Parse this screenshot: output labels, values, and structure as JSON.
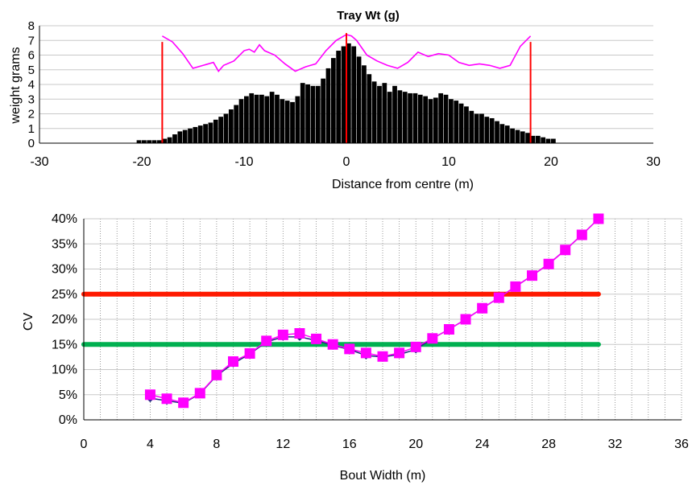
{
  "chart_data": [
    {
      "type": "bar",
      "title": "Tray Wt (g)",
      "xlabel": "Distance from centre (m)",
      "ylabel": "weight grams",
      "xlim": [
        -30,
        30
      ],
      "ylim": [
        0,
        8
      ],
      "xticks": [
        -30,
        -20,
        -10,
        0,
        10,
        20,
        30
      ],
      "yticks": [
        0,
        1,
        2,
        3,
        4,
        5,
        6,
        7,
        8
      ],
      "grid": true,
      "bin_width": 0.5,
      "histogram": {
        "x": [
          -20.5,
          -20,
          -19.5,
          -19,
          -18.5,
          -18,
          -17.5,
          -17,
          -16.5,
          -16,
          -15.5,
          -15,
          -14.5,
          -14,
          -13.5,
          -13,
          -12.5,
          -12,
          -11.5,
          -11,
          -10.5,
          -10,
          -9.5,
          -9,
          -8.5,
          -8,
          -7.5,
          -7,
          -6.5,
          -6,
          -5.5,
          -5,
          -4.5,
          -4,
          -3.5,
          -3,
          -2.5,
          -2,
          -1.5,
          -1,
          -0.5,
          0,
          0.5,
          1,
          1.5,
          2,
          2.5,
          3,
          3.5,
          4,
          4.5,
          5,
          5.5,
          6,
          6.5,
          7,
          7.5,
          8,
          8.5,
          9,
          9.5,
          10,
          10.5,
          11,
          11.5,
          12,
          12.5,
          13,
          13.5,
          14,
          14.5,
          15,
          15.5,
          16,
          16.5,
          17,
          17.5,
          18,
          18.5,
          19,
          19.5,
          20
        ],
        "values": [
          0.2,
          0.2,
          0.2,
          0.2,
          0.2,
          0.3,
          0.4,
          0.6,
          0.8,
          0.9,
          1.0,
          1.1,
          1.2,
          1.3,
          1.4,
          1.6,
          1.8,
          2.0,
          2.3,
          2.6,
          3.0,
          3.2,
          3.4,
          3.3,
          3.3,
          3.2,
          3.5,
          3.3,
          3.0,
          2.9,
          2.8,
          3.2,
          4.1,
          4.0,
          3.9,
          3.9,
          4.4,
          5.1,
          5.8,
          6.3,
          6.6,
          6.8,
          6.6,
          5.9,
          5.3,
          4.7,
          4.2,
          3.9,
          4.1,
          3.5,
          3.9,
          3.6,
          3.5,
          3.4,
          3.4,
          3.3,
          3.2,
          3.0,
          3.1,
          3.4,
          3.3,
          3.0,
          2.9,
          2.7,
          2.5,
          2.2,
          2.0,
          2.0,
          1.8,
          1.7,
          1.5,
          1.3,
          1.2,
          1.0,
          0.9,
          0.8,
          0.7,
          0.5,
          0.5,
          0.4,
          0.3,
          0.3
        ]
      },
      "cv_line": {
        "color": "#ff00ff",
        "x": [
          -18,
          -17,
          -16,
          -15,
          -14,
          -13,
          -12.5,
          -12,
          -11,
          -10,
          -9.5,
          -9,
          -8.5,
          -8,
          -7,
          -6,
          -5,
          -4,
          -3,
          -2,
          -1,
          0,
          0.5,
          1,
          2,
          3,
          4,
          5,
          6,
          7,
          8,
          9,
          10,
          11,
          12,
          13,
          14,
          15,
          16,
          17,
          18
        ],
        "values": [
          7.3,
          6.9,
          6.1,
          5.1,
          5.3,
          5.5,
          4.9,
          5.3,
          5.6,
          6.3,
          6.4,
          6.2,
          6.7,
          6.3,
          6.0,
          5.4,
          4.9,
          5.2,
          5.4,
          6.3,
          7.0,
          7.4,
          7.3,
          7.0,
          6.0,
          5.6,
          5.3,
          5.1,
          5.5,
          6.2,
          5.9,
          6.1,
          6.0,
          5.5,
          5.3,
          5.4,
          5.3,
          5.1,
          5.3,
          6.6,
          7.3
        ]
      },
      "red_markers": {
        "color": "#ff0000",
        "x": [
          -18,
          0,
          18
        ],
        "height": [
          6.9,
          7.5,
          6.9
        ]
      }
    },
    {
      "type": "line",
      "xlabel": "Bout Width (m)",
      "ylabel": "CV",
      "xlim": [
        0,
        36
      ],
      "ylim": [
        0,
        0.4
      ],
      "xticks": [
        0,
        4,
        8,
        12,
        16,
        20,
        24,
        28,
        32,
        36
      ],
      "yticks": [
        0,
        0.05,
        0.1,
        0.15,
        0.2,
        0.25,
        0.3,
        0.35,
        0.4
      ],
      "ytick_labels": [
        "0%",
        "5%",
        "10%",
        "15%",
        "20%",
        "25%",
        "30%",
        "35%",
        "40%"
      ],
      "grid": true,
      "series": [
        {
          "color": "#1f2f7f",
          "marker": "diamond",
          "x": [
            4,
            5,
            6,
            7,
            8,
            9,
            10,
            11,
            12,
            13,
            14,
            15,
            16,
            17,
            18,
            19,
            20,
            21,
            22,
            23,
            24,
            25,
            26,
            27,
            28,
            29,
            30,
            31
          ],
          "values": [
            0.043,
            0.038,
            0.033,
            0.052,
            0.088,
            0.112,
            0.131,
            0.155,
            0.165,
            0.165,
            0.158,
            0.148,
            0.14,
            0.128,
            0.125,
            0.13,
            0.14,
            0.162,
            0.18,
            0.2,
            0.222,
            0.243,
            0.265,
            0.287,
            0.31,
            0.338,
            0.368,
            0.4
          ]
        },
        {
          "color": "#ff00ff",
          "marker": "square",
          "x": [
            4,
            5,
            6,
            7,
            8,
            9,
            10,
            11,
            12,
            13,
            14,
            15,
            16,
            17,
            18,
            19,
            20,
            21,
            22,
            23,
            24,
            25,
            26,
            27,
            28,
            29,
            30,
            31
          ],
          "values": [
            0.05,
            0.042,
            0.034,
            0.053,
            0.089,
            0.116,
            0.132,
            0.157,
            0.169,
            0.172,
            0.161,
            0.15,
            0.141,
            0.133,
            0.126,
            0.133,
            0.145,
            0.162,
            0.18,
            0.2,
            0.222,
            0.243,
            0.265,
            0.287,
            0.31,
            0.338,
            0.368,
            0.4
          ]
        }
      ],
      "reference_lines": [
        {
          "color": "#ff1a00",
          "value": 0.25,
          "x": [
            0,
            31
          ]
        },
        {
          "color": "#00b050",
          "value": 0.15,
          "x": [
            0,
            31
          ]
        }
      ]
    }
  ]
}
